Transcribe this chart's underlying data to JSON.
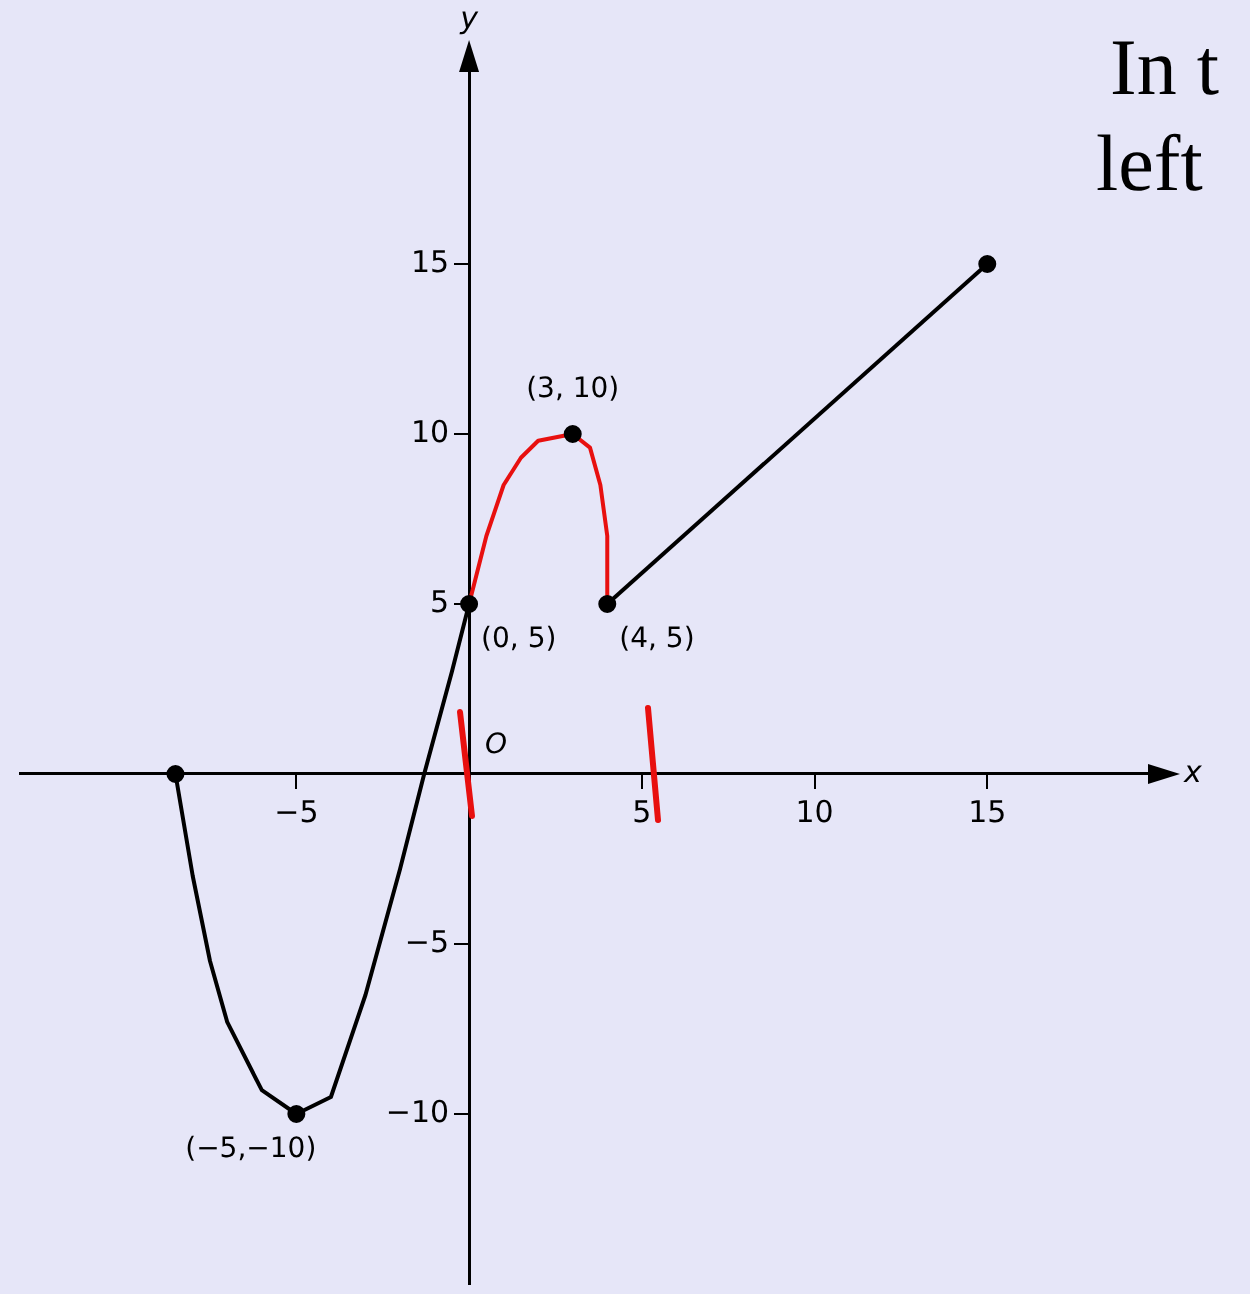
{
  "chart_data": {
    "type": "line",
    "xlabel": "x",
    "ylabel": "y",
    "xlim": [
      -13,
      20
    ],
    "ylim": [
      -15,
      21
    ],
    "xticks": [
      -5,
      5,
      10,
      15
    ],
    "yticks": [
      -10,
      -5,
      5,
      10,
      15
    ],
    "grid": false,
    "legend": false,
    "marker": "none",
    "line_style": "solid",
    "series": [
      {
        "color": "#000000",
        "x": [
          -8.5,
          -8,
          -7.5,
          -7,
          -6,
          -5,
          -4,
          -3,
          -2,
          -1.3,
          -0.5,
          0
        ],
        "values": [
          0,
          -3,
          -5.5,
          -7.3,
          -9.3,
          -10,
          -9.5,
          -6.5,
          -2.8,
          0,
          3,
          5
        ]
      },
      {
        "color": "#e8100f",
        "x": [
          0,
          0.5,
          1,
          1.5,
          2,
          3,
          3.5,
          3.8,
          4,
          4
        ],
        "values": [
          5,
          7,
          8.5,
          9.3,
          9.8,
          10,
          9.6,
          8.5,
          7,
          5
        ]
      },
      {
        "color": "#000000",
        "x": [
          4,
          15
        ],
        "values": [
          5,
          15
        ]
      },
      {
        "type": "scatter",
        "marker": "circle",
        "color": "#000000",
        "x": [
          -8.5,
          -5,
          0,
          3,
          4,
          15
        ],
        "values": [
          0,
          -10,
          5,
          10,
          5,
          15
        ]
      }
    ],
    "annotations": [
      {
        "text": "(3, 10)",
        "x": 3,
        "y": 10
      },
      {
        "text": "(0, 5)",
        "x": 0,
        "y": 5
      },
      {
        "text": "(4, 5)",
        "x": 4,
        "y": 5
      },
      {
        "text": "(−5,−10)",
        "x": -5,
        "y": -10
      },
      "O",
      "In t",
      "left"
    ]
  }
}
